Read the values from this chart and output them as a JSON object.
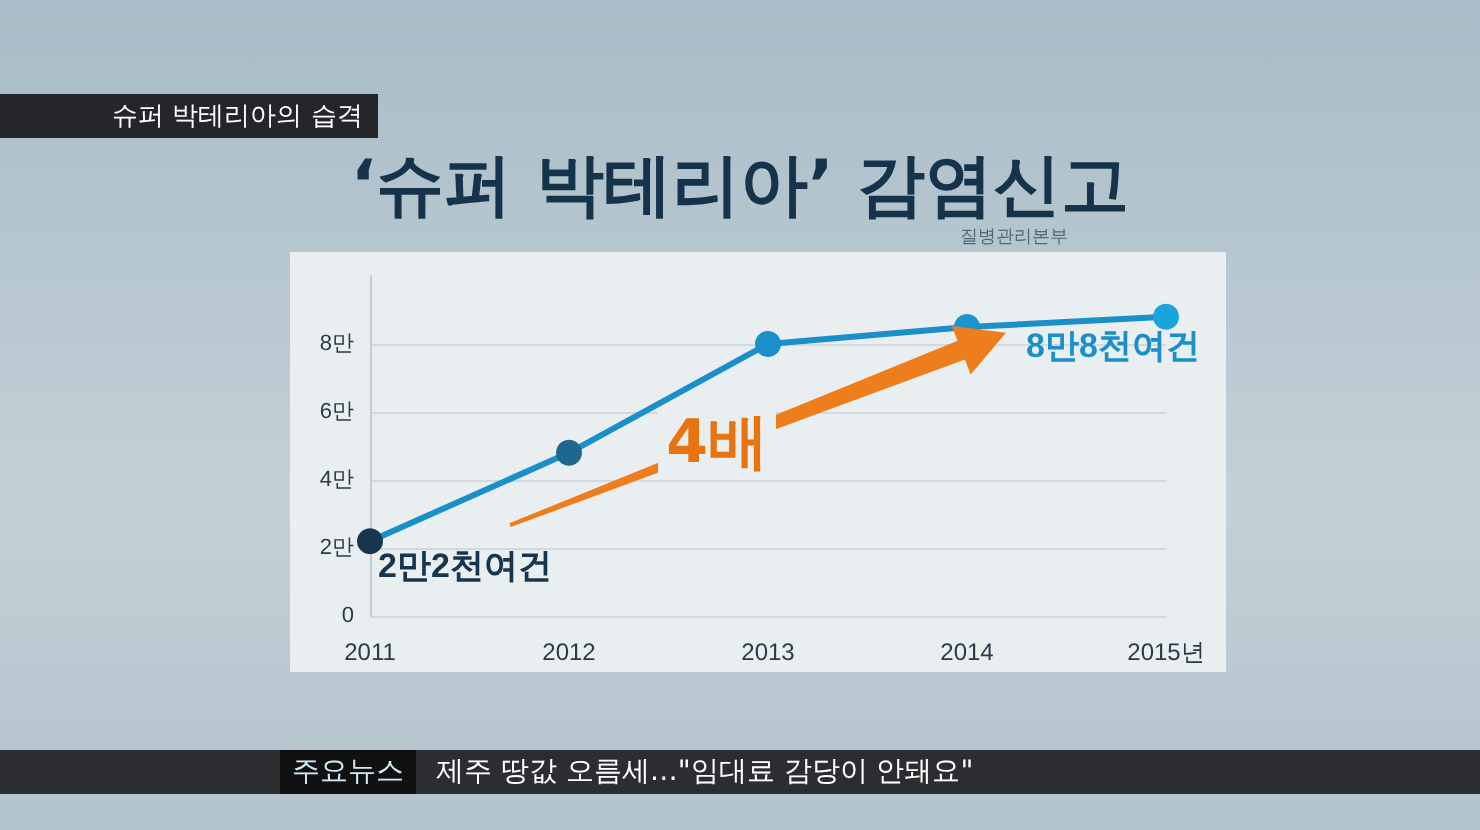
{
  "chart_data": {
    "type": "line",
    "title": "‘슈퍼 박테리아’ 감염신고",
    "subtitle": "슈퍼 박테리아의 습격",
    "categories": [
      "2011",
      "2012",
      "2013",
      "2014",
      "2015년"
    ],
    "series": [
      {
        "color": "#1a8fc9",
        "colors": [
          "#17354d",
          "#1f6690",
          "#1a8fc9",
          "#1a95d0",
          "#1ba3dc"
        ],
        "values": [
          2.2,
          4.8,
          8.0,
          8.5,
          8.8
        ]
      }
    ],
    "ylim": [
      0,
      10
    ],
    "yticks": [
      0,
      {
        "value": 2,
        "label": "2만"
      },
      {
        "value": 4,
        "label": "4만"
      },
      {
        "value": 6,
        "label": "6만"
      },
      {
        "value": 8,
        "label": "8만"
      }
    ],
    "grid": "y",
    "marker": "circle",
    "line_style": "solid",
    "annotations": [
      "질병관리본부",
      {
        "text": "2만2천여건",
        "x": "2011",
        "y": 2.2
      },
      {
        "text": "8만8천여건",
        "x": "2015년",
        "y": 8.8
      },
      "4배",
      "주요뉴스",
      "제주 땅값 오름세…\"임대료 감당이 안돼요\""
    ]
  }
}
